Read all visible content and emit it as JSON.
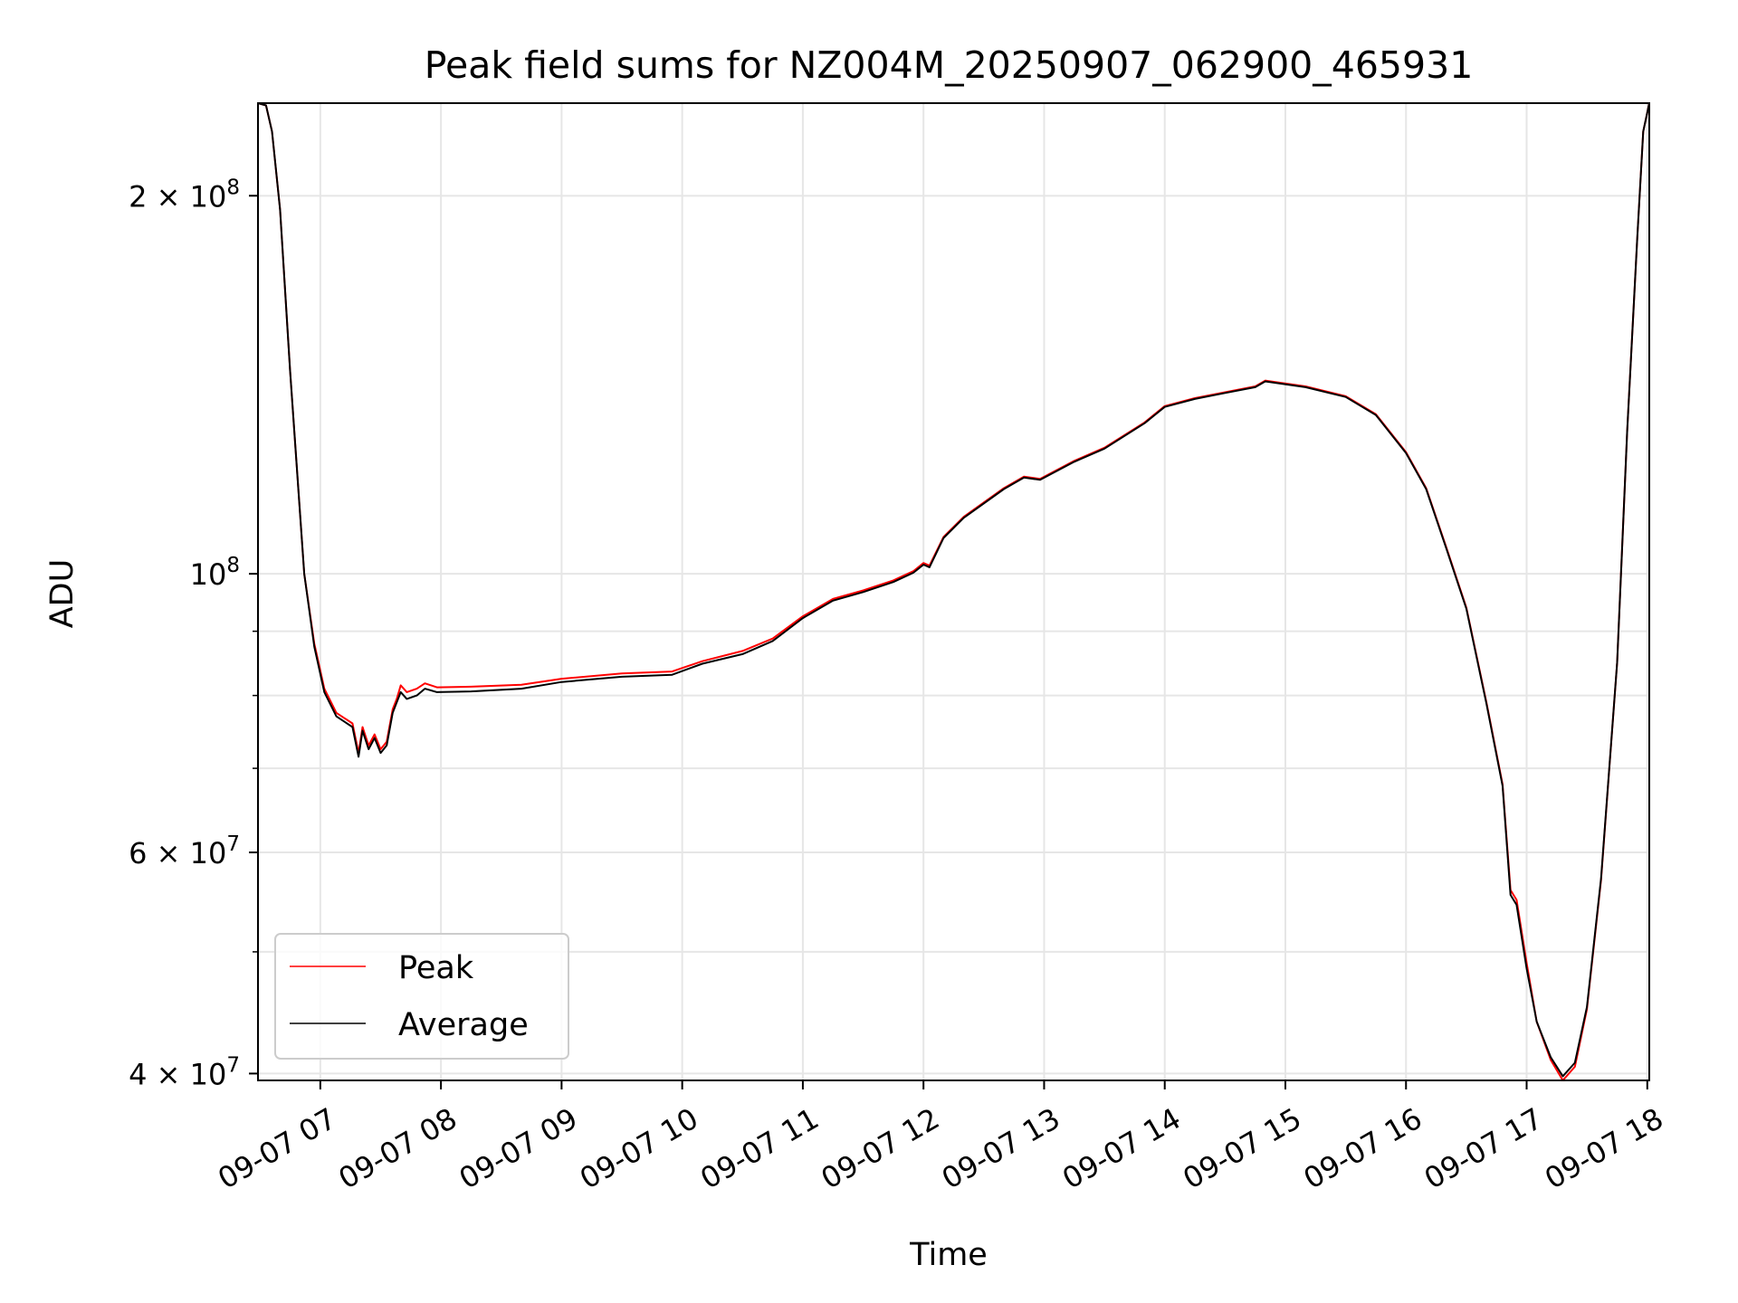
{
  "chart_data": {
    "type": "line",
    "title": "Peak field sums for NZ004M_20250907_062900_465931",
    "xlabel": "Time",
    "ylabel": "ADU",
    "y_scale": "log",
    "xlim": [
      "2025-09-07 06:29",
      "2025-09-07 18:01"
    ],
    "ylim": [
      39500000,
      237000000
    ],
    "grid": true,
    "legend_placement": "lower-left",
    "x_ticks": [
      {
        "t": "2025-09-07 07:00",
        "label": "09-07 07"
      },
      {
        "t": "2025-09-07 08:00",
        "label": "09-07 08"
      },
      {
        "t": "2025-09-07 09:00",
        "label": "09-07 09"
      },
      {
        "t": "2025-09-07 10:00",
        "label": "09-07 10"
      },
      {
        "t": "2025-09-07 11:00",
        "label": "09-07 11"
      },
      {
        "t": "2025-09-07 12:00",
        "label": "09-07 12"
      },
      {
        "t": "2025-09-07 13:00",
        "label": "09-07 13"
      },
      {
        "t": "2025-09-07 14:00",
        "label": "09-07 14"
      },
      {
        "t": "2025-09-07 15:00",
        "label": "09-07 15"
      },
      {
        "t": "2025-09-07 16:00",
        "label": "09-07 16"
      },
      {
        "t": "2025-09-07 17:00",
        "label": "09-07 17"
      },
      {
        "t": "2025-09-07 18:00",
        "label": "09-07 18"
      }
    ],
    "y_ticks_major": [
      {
        "value": 40000000,
        "base": "4",
        "exp": "7"
      },
      {
        "value": 60000000,
        "base": "6",
        "exp": "7"
      },
      {
        "value": 100000000,
        "base": "",
        "exp": "8"
      },
      {
        "value": 200000000,
        "base": "2",
        "exp": "8"
      }
    ],
    "y_ticks_minor": [
      50000000,
      70000000,
      80000000,
      90000000
    ],
    "series": [
      {
        "name": "Peak",
        "color": "#ff0000",
        "points": [
          [
            "2025-09-07 06:29",
            237000000
          ],
          [
            "2025-09-07 06:33",
            236000000
          ],
          [
            "2025-09-07 06:36",
            225000000
          ],
          [
            "2025-09-07 06:40",
            195000000
          ],
          [
            "2025-09-07 06:45",
            145000000
          ],
          [
            "2025-09-07 06:52",
            100000000
          ],
          [
            "2025-09-07 06:57",
            88000000
          ],
          [
            "2025-09-07 07:02",
            81000000
          ],
          [
            "2025-09-07 07:08",
            77500000
          ],
          [
            "2025-09-07 07:16",
            76000000
          ],
          [
            "2025-09-07 07:19",
            72000000
          ],
          [
            "2025-09-07 07:21",
            75500000
          ],
          [
            "2025-09-07 07:24",
            73000000
          ],
          [
            "2025-09-07 07:27",
            74500000
          ],
          [
            "2025-09-07 07:30",
            72500000
          ],
          [
            "2025-09-07 07:33",
            73500000
          ],
          [
            "2025-09-07 07:36",
            78000000
          ],
          [
            "2025-09-07 07:38",
            79500000
          ],
          [
            "2025-09-07 07:40",
            81500000
          ],
          [
            "2025-09-07 07:43",
            80500000
          ],
          [
            "2025-09-07 07:48",
            81000000
          ],
          [
            "2025-09-07 07:52",
            81800000
          ],
          [
            "2025-09-07 07:58",
            81200000
          ],
          [
            "2025-09-07 08:15",
            81300000
          ],
          [
            "2025-09-07 08:40",
            81600000
          ],
          [
            "2025-09-07 09:00",
            82500000
          ],
          [
            "2025-09-07 09:30",
            83300000
          ],
          [
            "2025-09-07 09:55",
            83600000
          ],
          [
            "2025-09-07 10:10",
            85200000
          ],
          [
            "2025-09-07 10:30",
            86800000
          ],
          [
            "2025-09-07 10:45",
            88800000
          ],
          [
            "2025-09-07 11:00",
            92500000
          ],
          [
            "2025-09-07 11:15",
            95500000
          ],
          [
            "2025-09-07 11:30",
            97000000
          ],
          [
            "2025-09-07 11:45",
            98800000
          ],
          [
            "2025-09-07 11:55",
            100500000
          ],
          [
            "2025-09-07 12:00",
            102000000
          ],
          [
            "2025-09-07 12:03",
            101500000
          ],
          [
            "2025-09-07 12:10",
            107000000
          ],
          [
            "2025-09-07 12:20",
            111000000
          ],
          [
            "2025-09-07 12:40",
            117000000
          ],
          [
            "2025-09-07 12:50",
            119500000
          ],
          [
            "2025-09-07 12:58",
            119000000
          ],
          [
            "2025-09-07 13:15",
            123000000
          ],
          [
            "2025-09-07 13:30",
            126000000
          ],
          [
            "2025-09-07 13:50",
            132000000
          ],
          [
            "2025-09-07 14:00",
            136000000
          ],
          [
            "2025-09-07 14:15",
            138000000
          ],
          [
            "2025-09-07 14:30",
            139500000
          ],
          [
            "2025-09-07 14:45",
            141000000
          ],
          [
            "2025-09-07 14:50",
            142500000
          ],
          [
            "2025-09-07 15:10",
            141000000
          ],
          [
            "2025-09-07 15:30",
            138500000
          ],
          [
            "2025-09-07 15:45",
            134000000
          ],
          [
            "2025-09-07 16:00",
            125000000
          ],
          [
            "2025-09-07 16:10",
            117000000
          ],
          [
            "2025-09-07 16:20",
            105000000
          ],
          [
            "2025-09-07 16:30",
            94000000
          ],
          [
            "2025-09-07 16:40",
            79000000
          ],
          [
            "2025-09-07 16:48",
            68000000
          ],
          [
            "2025-09-07 16:52",
            56000000
          ],
          [
            "2025-09-07 16:55",
            55000000
          ],
          [
            "2025-09-07 17:00",
            49000000
          ],
          [
            "2025-09-07 17:05",
            44000000
          ],
          [
            "2025-09-07 17:12",
            41000000
          ],
          [
            "2025-09-07 17:18",
            39500000
          ],
          [
            "2025-09-07 17:24",
            40500000
          ],
          [
            "2025-09-07 17:30",
            45000000
          ],
          [
            "2025-09-07 17:37",
            57000000
          ],
          [
            "2025-09-07 17:45",
            85000000
          ],
          [
            "2025-09-07 17:50",
            130000000
          ],
          [
            "2025-09-07 17:55",
            185000000
          ],
          [
            "2025-09-07 17:58",
            225000000
          ],
          [
            "2025-09-07 18:01",
            237000000
          ]
        ]
      },
      {
        "name": "Average",
        "color": "#000000",
        "points": [
          [
            "2025-09-07 06:29",
            237000000
          ],
          [
            "2025-09-07 06:33",
            236000000
          ],
          [
            "2025-09-07 06:36",
            225000000
          ],
          [
            "2025-09-07 06:40",
            195000000
          ],
          [
            "2025-09-07 06:45",
            145000000
          ],
          [
            "2025-09-07 06:52",
            100000000
          ],
          [
            "2025-09-07 06:57",
            87500000
          ],
          [
            "2025-09-07 07:02",
            80500000
          ],
          [
            "2025-09-07 07:08",
            77000000
          ],
          [
            "2025-09-07 07:16",
            75500000
          ],
          [
            "2025-09-07 07:19",
            71500000
          ],
          [
            "2025-09-07 07:21",
            75000000
          ],
          [
            "2025-09-07 07:24",
            72500000
          ],
          [
            "2025-09-07 07:27",
            74000000
          ],
          [
            "2025-09-07 07:30",
            72000000
          ],
          [
            "2025-09-07 07:33",
            73000000
          ],
          [
            "2025-09-07 07:36",
            77500000
          ],
          [
            "2025-09-07 07:38",
            79000000
          ],
          [
            "2025-09-07 07:40",
            80500000
          ],
          [
            "2025-09-07 07:43",
            79500000
          ],
          [
            "2025-09-07 07:48",
            80000000
          ],
          [
            "2025-09-07 07:52",
            81000000
          ],
          [
            "2025-09-07 07:58",
            80500000
          ],
          [
            "2025-09-07 08:15",
            80600000
          ],
          [
            "2025-09-07 08:40",
            81000000
          ],
          [
            "2025-09-07 09:00",
            82000000
          ],
          [
            "2025-09-07 09:30",
            82800000
          ],
          [
            "2025-09-07 09:55",
            83100000
          ],
          [
            "2025-09-07 10:10",
            84800000
          ],
          [
            "2025-09-07 10:30",
            86300000
          ],
          [
            "2025-09-07 10:45",
            88400000
          ],
          [
            "2025-09-07 11:00",
            92200000
          ],
          [
            "2025-09-07 11:15",
            95200000
          ],
          [
            "2025-09-07 11:30",
            96700000
          ],
          [
            "2025-09-07 11:45",
            98500000
          ],
          [
            "2025-09-07 11:55",
            100200000
          ],
          [
            "2025-09-07 12:00",
            101700000
          ],
          [
            "2025-09-07 12:03",
            101200000
          ],
          [
            "2025-09-07 12:10",
            106800000
          ],
          [
            "2025-09-07 12:20",
            110800000
          ],
          [
            "2025-09-07 12:40",
            116800000
          ],
          [
            "2025-09-07 12:50",
            119300000
          ],
          [
            "2025-09-07 12:58",
            118800000
          ],
          [
            "2025-09-07 13:15",
            122800000
          ],
          [
            "2025-09-07 13:30",
            125800000
          ],
          [
            "2025-09-07 13:50",
            131800000
          ],
          [
            "2025-09-07 14:00",
            135800000
          ],
          [
            "2025-09-07 14:15",
            137800000
          ],
          [
            "2025-09-07 14:30",
            139300000
          ],
          [
            "2025-09-07 14:45",
            140800000
          ],
          [
            "2025-09-07 14:50",
            142300000
          ],
          [
            "2025-09-07 15:10",
            140800000
          ],
          [
            "2025-09-07 15:30",
            138300000
          ],
          [
            "2025-09-07 15:45",
            133800000
          ],
          [
            "2025-09-07 16:00",
            124800000
          ],
          [
            "2025-09-07 16:10",
            116800000
          ],
          [
            "2025-09-07 16:20",
            104800000
          ],
          [
            "2025-09-07 16:30",
            93800000
          ],
          [
            "2025-09-07 16:40",
            78800000
          ],
          [
            "2025-09-07 16:48",
            67800000
          ],
          [
            "2025-09-07 16:52",
            55500000
          ],
          [
            "2025-09-07 16:55",
            54500000
          ],
          [
            "2025-09-07 17:00",
            48500000
          ],
          [
            "2025-09-07 17:05",
            44000000
          ],
          [
            "2025-09-07 17:12",
            41200000
          ],
          [
            "2025-09-07 17:18",
            39800000
          ],
          [
            "2025-09-07 17:24",
            40800000
          ],
          [
            "2025-09-07 17:30",
            45200000
          ],
          [
            "2025-09-07 17:37",
            57200000
          ],
          [
            "2025-09-07 17:45",
            85000000
          ],
          [
            "2025-09-07 17:50",
            130000000
          ],
          [
            "2025-09-07 17:55",
            185000000
          ],
          [
            "2025-09-07 17:58",
            225000000
          ],
          [
            "2025-09-07 18:01",
            237000000
          ]
        ]
      }
    ],
    "colors": {
      "grid": "#e6e6e6",
      "frame": "#000000",
      "legend_border": "#cccccc"
    }
  }
}
